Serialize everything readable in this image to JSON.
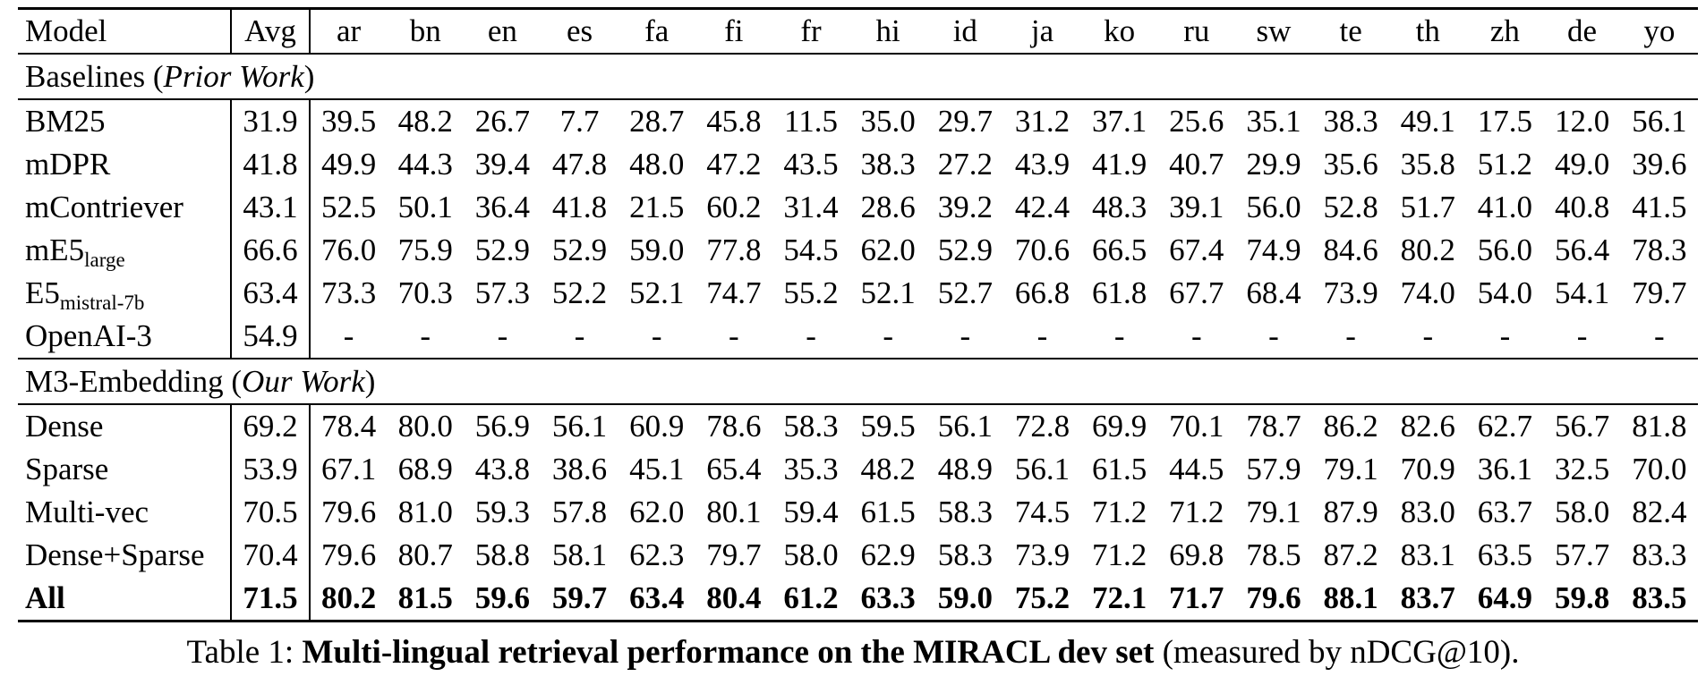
{
  "colors": {
    "text": "#000000",
    "background": "#ffffff"
  },
  "table": {
    "header": {
      "model": "Model",
      "avg": "Avg",
      "languages": [
        "ar",
        "bn",
        "en",
        "es",
        "fa",
        "fi",
        "fr",
        "hi",
        "id",
        "ja",
        "ko",
        "ru",
        "sw",
        "te",
        "th",
        "zh",
        "de",
        "yo"
      ]
    },
    "sections": [
      {
        "title_prefix": "Baselines (",
        "title_italic": "Prior Work",
        "title_suffix": ")",
        "rows": [
          {
            "model": "BM25",
            "subscript": "",
            "bold": false,
            "avg": "31.9",
            "scores": [
              "39.5",
              "48.2",
              "26.7",
              "7.7",
              "28.7",
              "45.8",
              "11.5",
              "35.0",
              "29.7",
              "31.2",
              "37.1",
              "25.6",
              "35.1",
              "38.3",
              "49.1",
              "17.5",
              "12.0",
              "56.1"
            ]
          },
          {
            "model": "mDPR",
            "subscript": "",
            "bold": false,
            "avg": "41.8",
            "scores": [
              "49.9",
              "44.3",
              "39.4",
              "47.8",
              "48.0",
              "47.2",
              "43.5",
              "38.3",
              "27.2",
              "43.9",
              "41.9",
              "40.7",
              "29.9",
              "35.6",
              "35.8",
              "51.2",
              "49.0",
              "39.6"
            ]
          },
          {
            "model": "mContriever",
            "subscript": "",
            "bold": false,
            "avg": "43.1",
            "scores": [
              "52.5",
              "50.1",
              "36.4",
              "41.8",
              "21.5",
              "60.2",
              "31.4",
              "28.6",
              "39.2",
              "42.4",
              "48.3",
              "39.1",
              "56.0",
              "52.8",
              "51.7",
              "41.0",
              "40.8",
              "41.5"
            ]
          },
          {
            "model": "mE5",
            "subscript": "large",
            "bold": false,
            "avg": "66.6",
            "scores": [
              "76.0",
              "75.9",
              "52.9",
              "52.9",
              "59.0",
              "77.8",
              "54.5",
              "62.0",
              "52.9",
              "70.6",
              "66.5",
              "67.4",
              "74.9",
              "84.6",
              "80.2",
              "56.0",
              "56.4",
              "78.3"
            ]
          },
          {
            "model": "E5",
            "subscript": "mistral-7b",
            "bold": false,
            "avg": "63.4",
            "scores": [
              "73.3",
              "70.3",
              "57.3",
              "52.2",
              "52.1",
              "74.7",
              "55.2",
              "52.1",
              "52.7",
              "66.8",
              "61.8",
              "67.7",
              "68.4",
              "73.9",
              "74.0",
              "54.0",
              "54.1",
              "79.7"
            ]
          },
          {
            "model": "OpenAI-3",
            "subscript": "",
            "bold": false,
            "avg": "54.9",
            "scores": [
              "-",
              "-",
              "-",
              "-",
              "-",
              "-",
              "-",
              "-",
              "-",
              "-",
              "-",
              "-",
              "-",
              "-",
              "-",
              "-",
              "-",
              "-"
            ]
          }
        ]
      },
      {
        "title_prefix": "M3-Embedding (",
        "title_italic": "Our Work",
        "title_suffix": ")",
        "rows": [
          {
            "model": "Dense",
            "subscript": "",
            "bold": false,
            "avg": "69.2",
            "scores": [
              "78.4",
              "80.0",
              "56.9",
              "56.1",
              "60.9",
              "78.6",
              "58.3",
              "59.5",
              "56.1",
              "72.8",
              "69.9",
              "70.1",
              "78.7",
              "86.2",
              "82.6",
              "62.7",
              "56.7",
              "81.8"
            ]
          },
          {
            "model": "Sparse",
            "subscript": "",
            "bold": false,
            "avg": "53.9",
            "scores": [
              "67.1",
              "68.9",
              "43.8",
              "38.6",
              "45.1",
              "65.4",
              "35.3",
              "48.2",
              "48.9",
              "56.1",
              "61.5",
              "44.5",
              "57.9",
              "79.1",
              "70.9",
              "36.1",
              "32.5",
              "70.0"
            ]
          },
          {
            "model": "Multi-vec",
            "subscript": "",
            "bold": false,
            "avg": "70.5",
            "scores": [
              "79.6",
              "81.0",
              "59.3",
              "57.8",
              "62.0",
              "80.1",
              "59.4",
              "61.5",
              "58.3",
              "74.5",
              "71.2",
              "71.2",
              "79.1",
              "87.9",
              "83.0",
              "63.7",
              "58.0",
              "82.4"
            ]
          },
          {
            "model": "Dense+Sparse",
            "subscript": "",
            "bold": false,
            "avg": "70.4",
            "scores": [
              "79.6",
              "80.7",
              "58.8",
              "58.1",
              "62.3",
              "79.7",
              "58.0",
              "62.9",
              "58.3",
              "73.9",
              "71.2",
              "69.8",
              "78.5",
              "87.2",
              "83.1",
              "63.5",
              "57.7",
              "83.3"
            ]
          },
          {
            "model": "All",
            "subscript": "",
            "bold": true,
            "avg": "71.5",
            "scores": [
              "80.2",
              "81.5",
              "59.6",
              "59.7",
              "63.4",
              "80.4",
              "61.2",
              "63.3",
              "59.0",
              "75.2",
              "72.1",
              "71.7",
              "79.6",
              "88.1",
              "83.7",
              "64.9",
              "59.8",
              "83.5"
            ]
          }
        ]
      }
    ]
  },
  "caption": {
    "prefix": "Table 1: ",
    "bold_text": "Multi-lingual retrieval performance on the MIRACL dev set",
    "suffix": " (measured by nDCG@10)."
  }
}
